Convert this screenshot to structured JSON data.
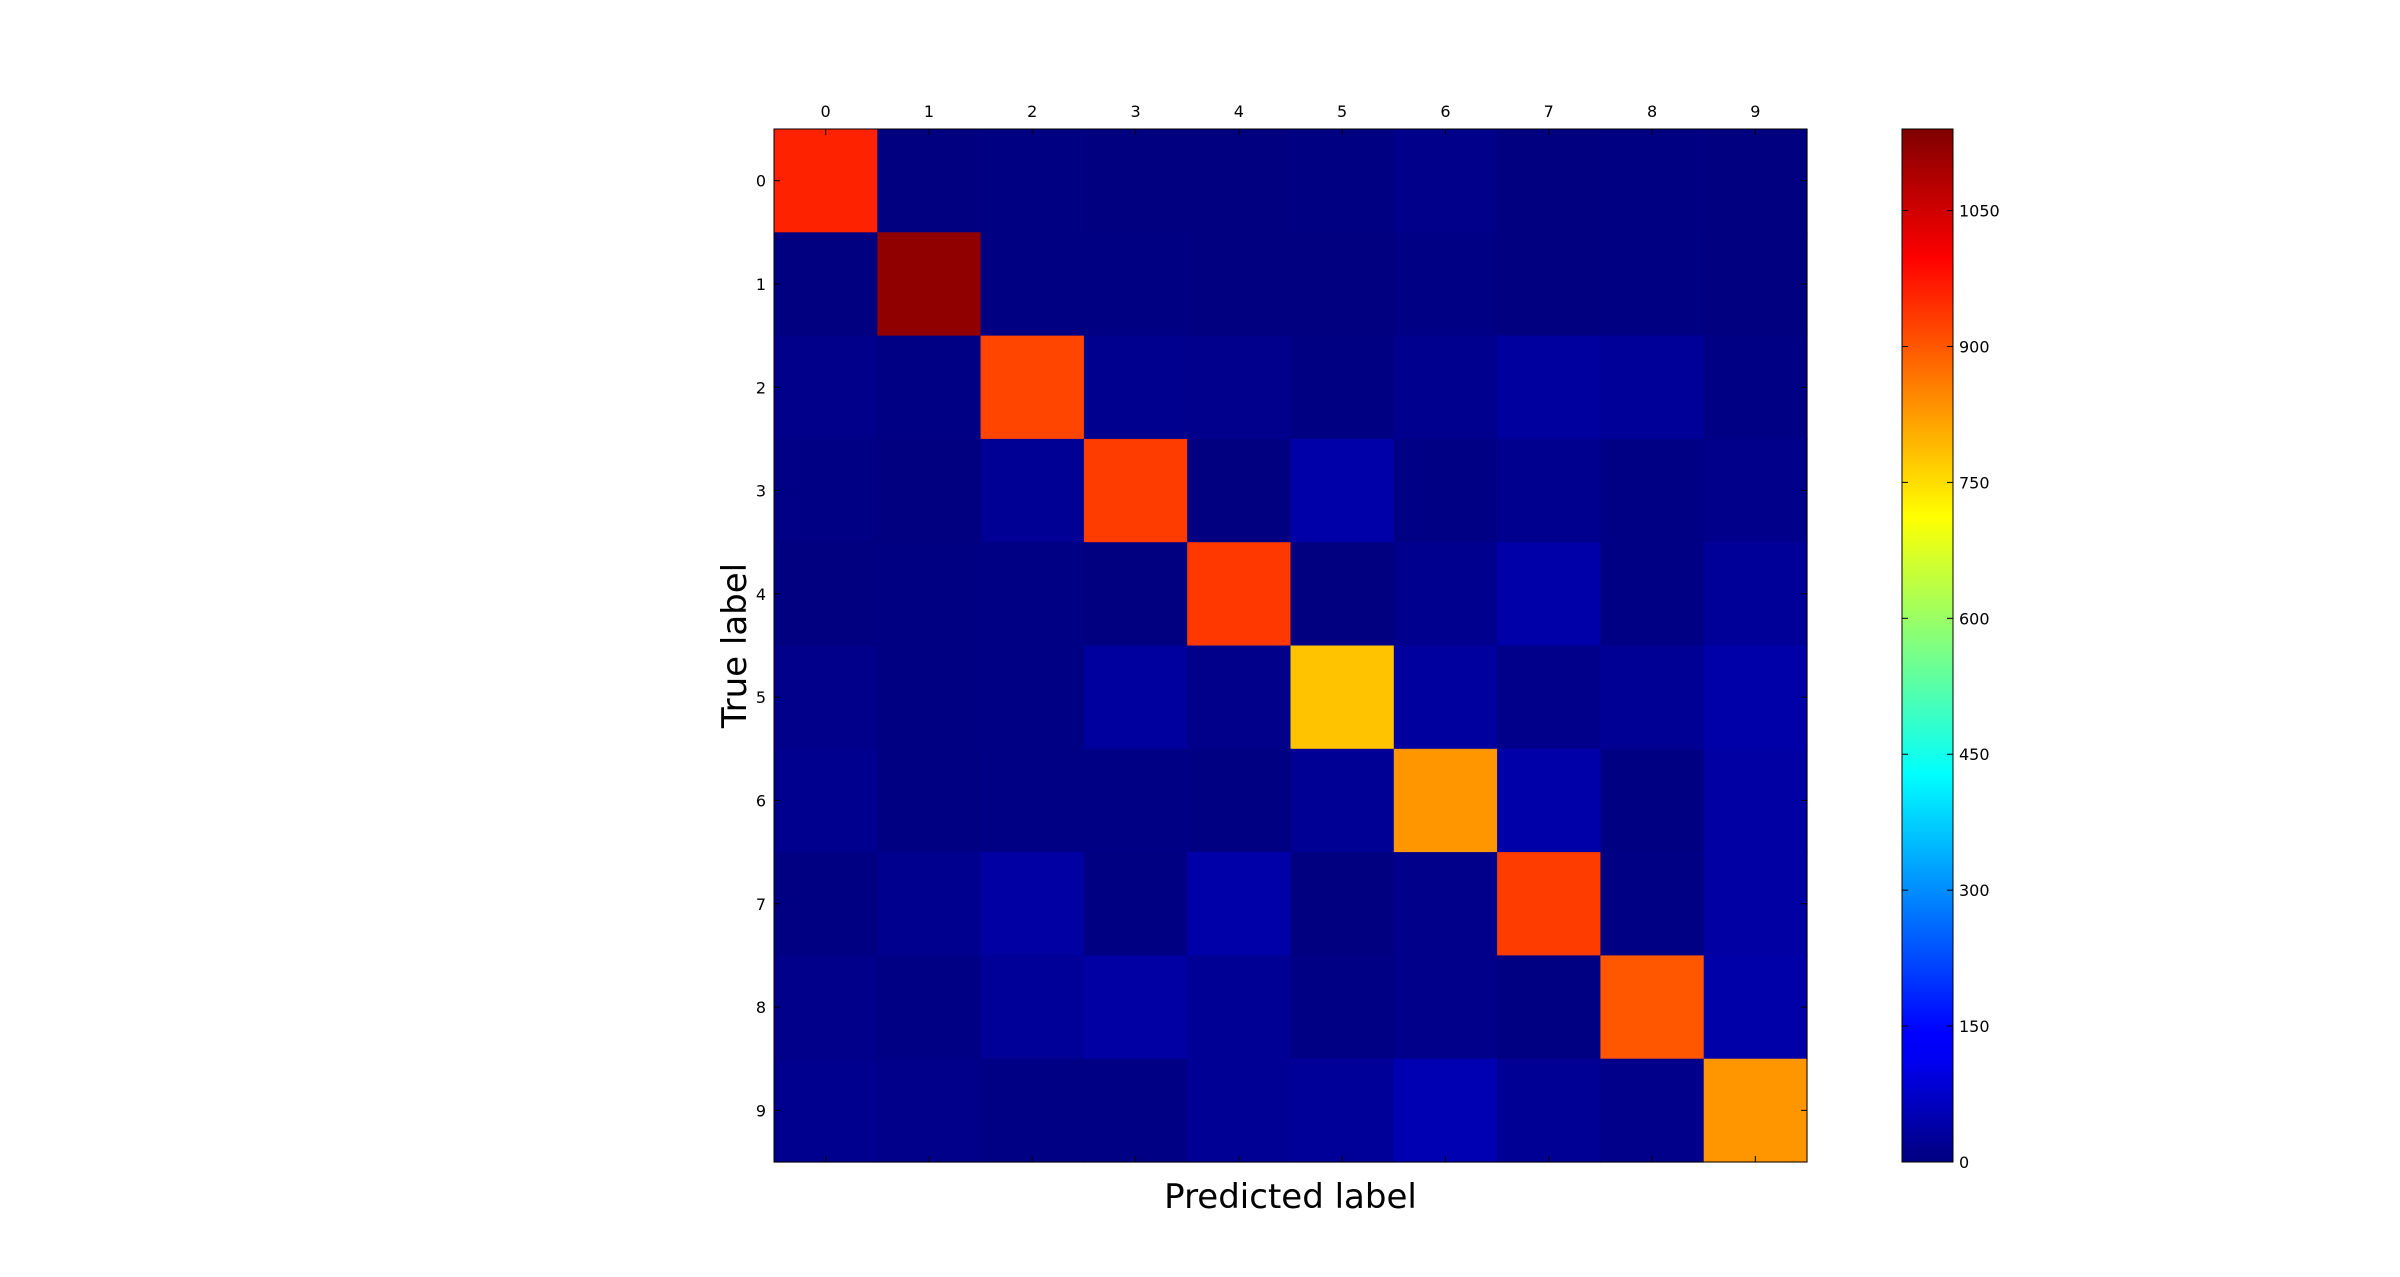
{
  "chart_data": {
    "type": "heatmap",
    "title": "",
    "xlabel": "Predicted label",
    "ylabel": "True label",
    "x_tick_labels": [
      "0",
      "1",
      "2",
      "3",
      "4",
      "5",
      "6",
      "7",
      "8",
      "9"
    ],
    "y_tick_labels": [
      "0",
      "1",
      "2",
      "3",
      "4",
      "5",
      "6",
      "7",
      "8",
      "9"
    ],
    "colormap": "jet",
    "value_range": [
      0,
      1140
    ],
    "colorbar_ticks": [
      {
        "value": 0,
        "label": "0"
      },
      {
        "value": 150,
        "label": "150"
      },
      {
        "value": 300,
        "label": "300"
      },
      {
        "value": 450,
        "label": "450"
      },
      {
        "value": 600,
        "label": "600"
      },
      {
        "value": 750,
        "label": "750"
      },
      {
        "value": 900,
        "label": "900"
      },
      {
        "value": 1050,
        "label": "1050"
      }
    ],
    "matrix": [
      [
        960,
        0,
        3,
        1,
        0,
        3,
        10,
        1,
        2,
        0
      ],
      [
        0,
        1120,
        3,
        2,
        1,
        1,
        4,
        1,
        3,
        0
      ],
      [
        10,
        5,
        920,
        15,
        12,
        3,
        15,
        30,
        25,
        5
      ],
      [
        4,
        1,
        20,
        930,
        1,
        40,
        5,
        15,
        5,
        10
      ],
      [
        1,
        2,
        5,
        0,
        935,
        0,
        15,
        40,
        5,
        25
      ],
      [
        10,
        2,
        5,
        30,
        10,
        780,
        30,
        10,
        20,
        40
      ],
      [
        15,
        3,
        5,
        5,
        3,
        20,
        830,
        40,
        3,
        35
      ],
      [
        2,
        15,
        35,
        3,
        40,
        1,
        10,
        930,
        5,
        35
      ],
      [
        10,
        5,
        25,
        35,
        20,
        5,
        10,
        3,
        900,
        40
      ],
      [
        15,
        10,
        5,
        5,
        20,
        25,
        50,
        20,
        10,
        830
      ]
    ]
  }
}
